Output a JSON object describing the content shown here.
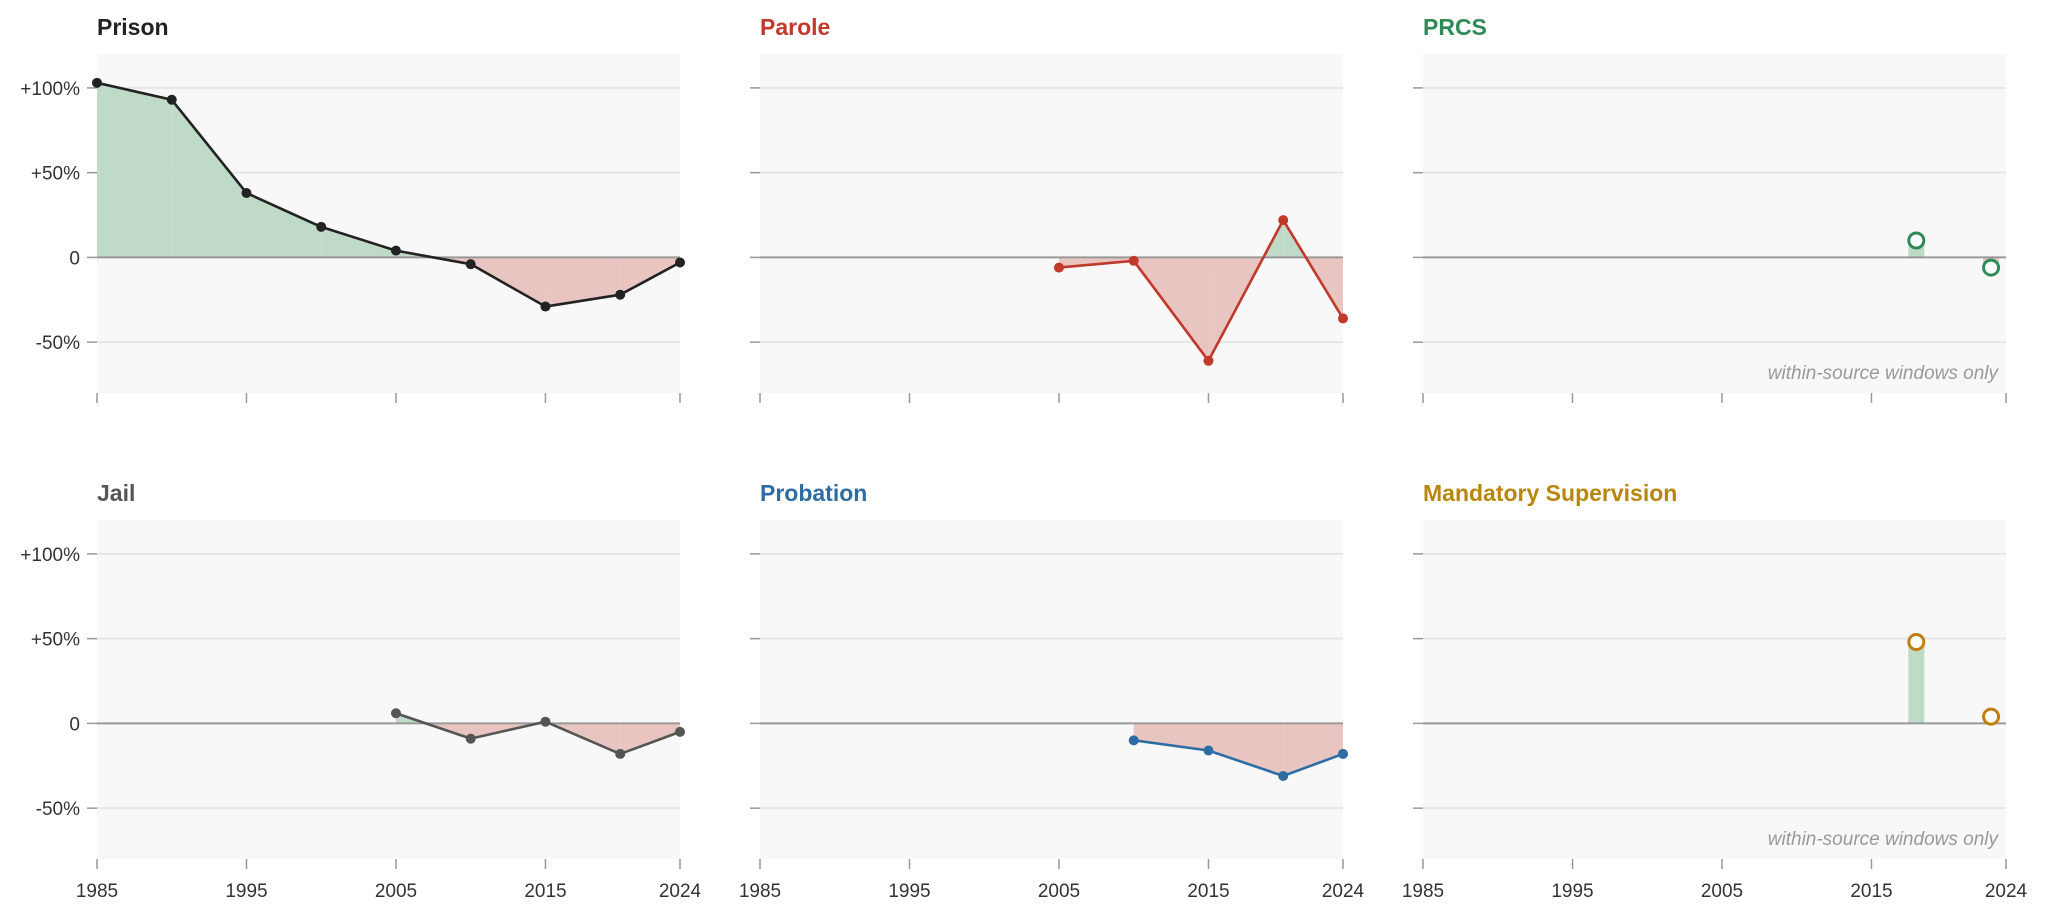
{
  "chart_data": [
    {
      "type": "line",
      "title": "Prison",
      "title_color": "#222222",
      "line_color": "#222222",
      "marker": "filled",
      "x": [
        1985,
        1990,
        1995,
        2000,
        2005,
        2010,
        2015,
        2020,
        2024
      ],
      "values": [
        103,
        93,
        38,
        18,
        4,
        -4,
        -29,
        -22,
        -3
      ],
      "ylim": [
        -80,
        120
      ],
      "xlim": [
        1985,
        2024
      ],
      "y_ticks": [
        "+100%",
        "+50%",
        "0",
        "-50%"
      ],
      "x_ticks": [],
      "note": ""
    },
    {
      "type": "line",
      "title": "Parole",
      "title_color": "#c0392b",
      "line_color": "#c0392b",
      "marker": "filled",
      "x": [
        2005,
        2010,
        2015,
        2020,
        2024
      ],
      "values": [
        -6,
        -2,
        -61,
        22,
        -36
      ],
      "ylim": [
        -80,
        120
      ],
      "xlim": [
        1985,
        2024
      ],
      "y_ticks": [],
      "x_ticks": [],
      "note": ""
    },
    {
      "type": "scatter",
      "title": "PRCS",
      "title_color": "#2e8b57",
      "line_color": "#2e8b57",
      "marker": "open",
      "x": [
        2018,
        2023
      ],
      "values": [
        10,
        -6
      ],
      "ylim": [
        -80,
        120
      ],
      "xlim": [
        1985,
        2024
      ],
      "y_ticks": [],
      "x_ticks": [],
      "note": "within-source windows only"
    },
    {
      "type": "line",
      "title": "Jail",
      "title_color": "#555555",
      "line_color": "#555555",
      "marker": "filled",
      "x": [
        2005,
        2010,
        2015,
        2020,
        2024
      ],
      "values": [
        6,
        -9,
        1,
        -18,
        -5
      ],
      "ylim": [
        -80,
        120
      ],
      "xlim": [
        1985,
        2024
      ],
      "y_ticks": [
        "+100%",
        "+50%",
        "0",
        "-50%"
      ],
      "x_ticks": [
        "1985",
        "1995",
        "2005",
        "2015",
        "2024"
      ],
      "note": ""
    },
    {
      "type": "line",
      "title": "Probation",
      "title_color": "#2e6da4",
      "line_color": "#2e6da4",
      "marker": "filled",
      "x": [
        2010,
        2015,
        2020,
        2024
      ],
      "values": [
        -10,
        -16,
        -31,
        -18
      ],
      "ylim": [
        -80,
        120
      ],
      "xlim": [
        1985,
        2024
      ],
      "y_ticks": [],
      "x_ticks": [
        "1985",
        "1995",
        "2005",
        "2015",
        "2024"
      ],
      "note": ""
    },
    {
      "type": "scatter",
      "title": "Mandatory Supervision",
      "title_color": "#b8860b",
      "line_color": "#c08010",
      "marker": "open",
      "x": [
        2018,
        2023
      ],
      "values": [
        48,
        4
      ],
      "ylim": [
        -80,
        120
      ],
      "xlim": [
        1985,
        2024
      ],
      "y_ticks": [],
      "x_ticks": [
        "1985",
        "1995",
        "2005",
        "2015",
        "2024"
      ],
      "note": "within-source windows only"
    }
  ],
  "colors": {
    "positive_fill": "#bfdac7",
    "negative_fill": "#e9c5c1",
    "panel_bg": "#f8f8f8",
    "grid": "#e6e6e6",
    "zero_line": "#999999"
  }
}
